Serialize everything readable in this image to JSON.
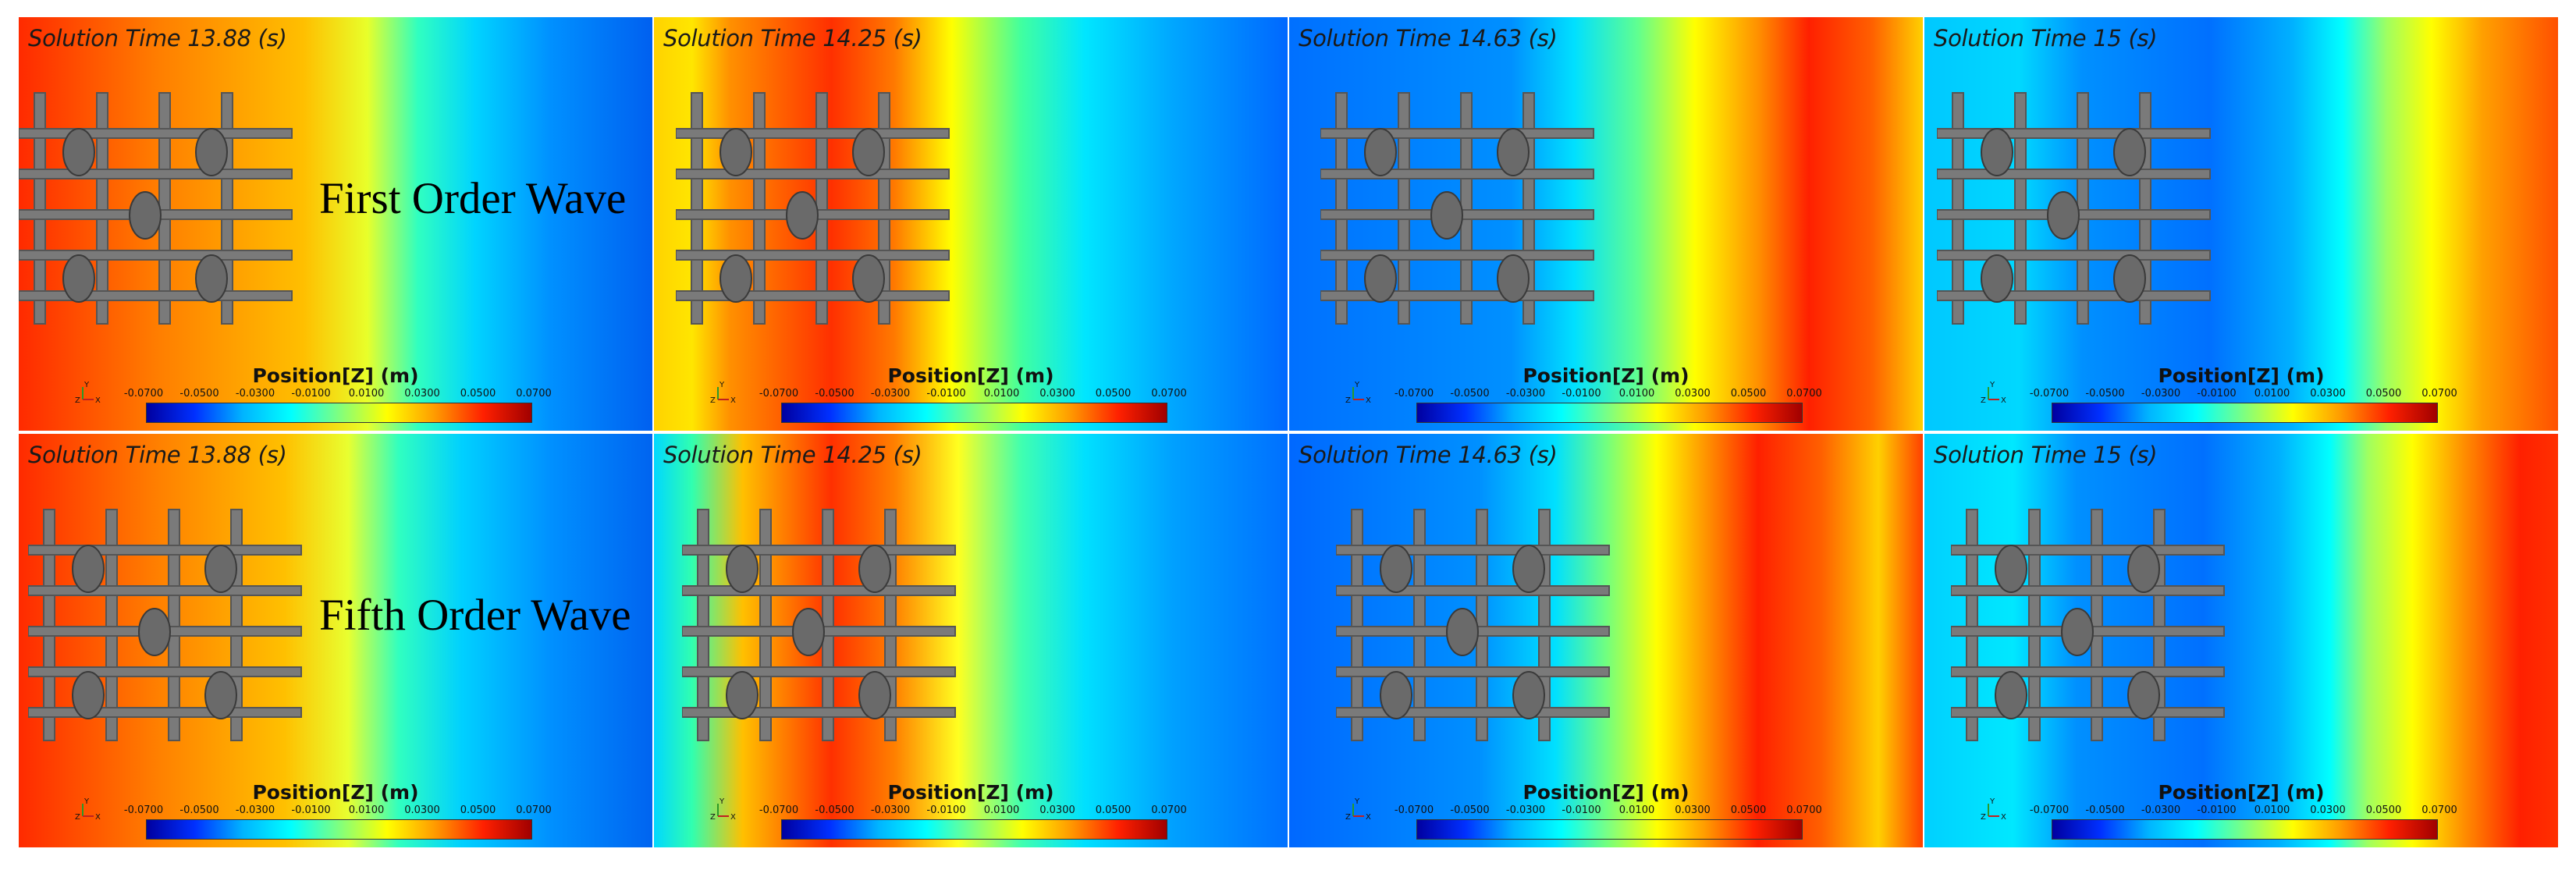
{
  "figure": {
    "rows": [
      {
        "label": "First Order Wave",
        "panels": [
          {
            "time_label": "Solution Time 13.88 (s)",
            "legend_title": "Position[Z] (m)"
          },
          {
            "time_label": "Solution Time 14.25 (s)",
            "legend_title": "Position[Z] (m)"
          },
          {
            "time_label": "Solution Time 14.63 (s)",
            "legend_title": "Position[Z] (m)"
          },
          {
            "time_label": "Solution Time 15 (s)",
            "legend_title": "Position[Z] (m)"
          }
        ]
      },
      {
        "label": "Fifth Order Wave",
        "panels": [
          {
            "time_label": "Solution Time 13.88 (s)",
            "legend_title": "Position[Z] (m)"
          },
          {
            "time_label": "Solution Time 14.25 (s)",
            "legend_title": "Position[Z] (m)"
          },
          {
            "time_label": "Solution Time 14.63 (s)",
            "legend_title": "Position[Z] (m)"
          },
          {
            "time_label": "Solution Time 15 (s)",
            "legend_title": "Position[Z] (m)"
          }
        ]
      }
    ],
    "colorbar": {
      "ticks": [
        "-0.0700",
        "-0.0500",
        "-0.0300",
        "-0.0100",
        "0.0100",
        "0.0300",
        "0.0500",
        "0.0700"
      ],
      "colors": [
        "#0000a0",
        "#0030ff",
        "#00b4ff",
        "#00ffff",
        "#7fff7f",
        "#ffff00",
        "#ff9a00",
        "#ff2000",
        "#a00000"
      ]
    },
    "axis_triad": {
      "y": "Y",
      "z": "Z",
      "x": "X"
    }
  }
}
